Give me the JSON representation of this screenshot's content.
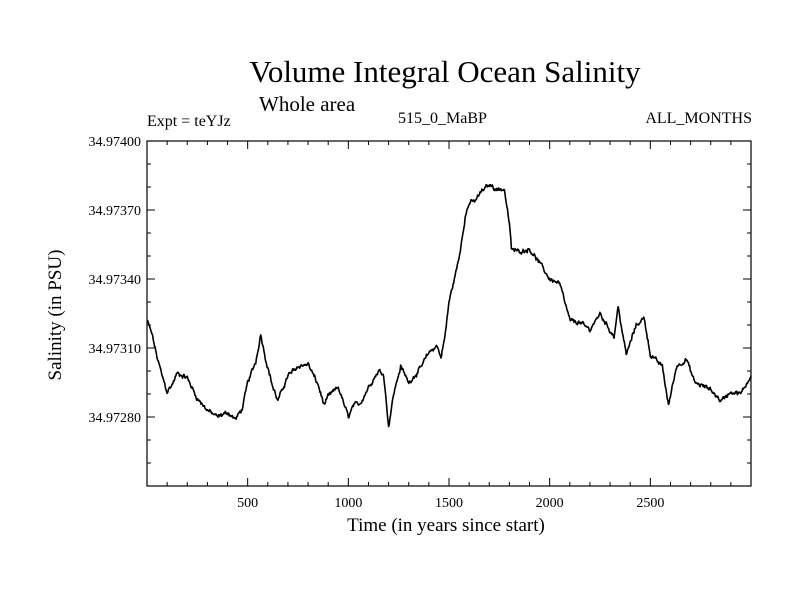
{
  "chart_data": {
    "type": "line",
    "title": "Volume Integral Ocean Salinity",
    "subtitle": "Whole area",
    "expt_label": "Expt = teYJz",
    "center_label": "515_0_MaBP",
    "right_label": "ALL_MONTHS",
    "xlabel": "Time (in years since start)",
    "ylabel": "Salinity (in PSU)",
    "xlim": [
      0,
      3000
    ],
    "ylim": [
      34.9725,
      34.974
    ],
    "x_ticks": [
      500,
      1000,
      1500,
      2000,
      2500
    ],
    "x_tick_labels": [
      "500",
      "1000",
      "1500",
      "2000",
      "2500"
    ],
    "y_ticks": [
      34.9728,
      34.9731,
      34.9734,
      34.9737,
      34.974
    ],
    "y_tick_labels": [
      "34.97280",
      "34.97310",
      "34.97340",
      "34.97370",
      "34.97400"
    ],
    "line_color": "#000000",
    "series": [
      {
        "name": "salinity",
        "x": [
          0,
          25,
          50,
          75,
          100,
          125,
          150,
          200,
          250,
          300,
          350,
          400,
          440,
          475,
          500,
          540,
          565,
          590,
          625,
          650,
          700,
          750,
          800,
          850,
          880,
          900,
          950,
          1000,
          1025,
          1060,
          1100,
          1150,
          1175,
          1200,
          1225,
          1260,
          1300,
          1350,
          1400,
          1440,
          1460,
          1480,
          1500,
          1550,
          1580,
          1600,
          1630,
          1660,
          1700,
          1740,
          1775,
          1800,
          1810,
          1850,
          1900,
          1950,
          2000,
          2050,
          2100,
          2150,
          2200,
          2250,
          2290,
          2320,
          2340,
          2380,
          2430,
          2470,
          2500,
          2560,
          2590,
          2630,
          2680,
          2720,
          2800,
          2850,
          2900,
          2950,
          3000
        ],
        "y": [
          34.97322,
          34.97316,
          34.97306,
          34.97298,
          34.97291,
          34.97294,
          34.97299,
          34.97297,
          34.97288,
          34.97283,
          34.9728,
          34.97282,
          34.97279,
          34.97284,
          34.97295,
          34.97304,
          34.97316,
          34.97305,
          34.97293,
          34.97287,
          34.97298,
          34.97302,
          34.97303,
          34.97294,
          34.97285,
          34.97289,
          34.97293,
          34.9728,
          34.97285,
          34.97286,
          34.97293,
          34.973,
          34.97299,
          34.97276,
          34.9729,
          34.97302,
          34.97295,
          34.973,
          34.97308,
          34.97311,
          34.97306,
          34.97315,
          34.9733,
          34.97349,
          34.97367,
          34.97373,
          34.97374,
          34.97378,
          34.97381,
          34.97379,
          34.97379,
          34.97364,
          34.97353,
          34.97352,
          34.97353,
          34.97347,
          34.9734,
          34.97338,
          34.97322,
          34.97321,
          34.97318,
          34.97325,
          34.97319,
          34.97315,
          34.97328,
          34.97307,
          34.9732,
          34.97323,
          34.97307,
          34.97302,
          34.97285,
          34.97302,
          34.97305,
          34.97295,
          34.97292,
          34.97287,
          34.97291,
          34.9729,
          34.97298
        ]
      }
    ]
  }
}
